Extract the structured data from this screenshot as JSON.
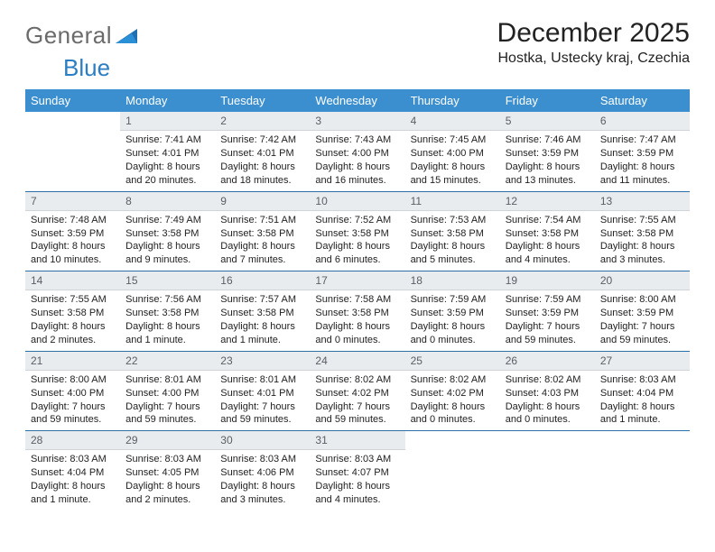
{
  "brand": {
    "text1": "General",
    "text2": "Blue"
  },
  "header": {
    "month_title": "December 2025",
    "location": "Hostka, Ustecky kraj, Czechia"
  },
  "colors": {
    "header_bg": "#3b8fcf",
    "header_text": "#ffffff",
    "daynum_bg": "#e9ecef",
    "daynum_text": "#5a5f66",
    "row_sep": "#2f6fa8",
    "body_text": "#222222",
    "logo_gray": "#6b6b6b",
    "logo_blue": "#2b7ec2"
  },
  "weekdays": [
    "Sunday",
    "Monday",
    "Tuesday",
    "Wednesday",
    "Thursday",
    "Friday",
    "Saturday"
  ],
  "weeks": [
    [
      {
        "n": "",
        "sr": "",
        "ss": "",
        "dl": ""
      },
      {
        "n": "1",
        "sr": "Sunrise: 7:41 AM",
        "ss": "Sunset: 4:01 PM",
        "dl": "Daylight: 8 hours and 20 minutes."
      },
      {
        "n": "2",
        "sr": "Sunrise: 7:42 AM",
        "ss": "Sunset: 4:01 PM",
        "dl": "Daylight: 8 hours and 18 minutes."
      },
      {
        "n": "3",
        "sr": "Sunrise: 7:43 AM",
        "ss": "Sunset: 4:00 PM",
        "dl": "Daylight: 8 hours and 16 minutes."
      },
      {
        "n": "4",
        "sr": "Sunrise: 7:45 AM",
        "ss": "Sunset: 4:00 PM",
        "dl": "Daylight: 8 hours and 15 minutes."
      },
      {
        "n": "5",
        "sr": "Sunrise: 7:46 AM",
        "ss": "Sunset: 3:59 PM",
        "dl": "Daylight: 8 hours and 13 minutes."
      },
      {
        "n": "6",
        "sr": "Sunrise: 7:47 AM",
        "ss": "Sunset: 3:59 PM",
        "dl": "Daylight: 8 hours and 11 minutes."
      }
    ],
    [
      {
        "n": "7",
        "sr": "Sunrise: 7:48 AM",
        "ss": "Sunset: 3:59 PM",
        "dl": "Daylight: 8 hours and 10 minutes."
      },
      {
        "n": "8",
        "sr": "Sunrise: 7:49 AM",
        "ss": "Sunset: 3:58 PM",
        "dl": "Daylight: 8 hours and 9 minutes."
      },
      {
        "n": "9",
        "sr": "Sunrise: 7:51 AM",
        "ss": "Sunset: 3:58 PM",
        "dl": "Daylight: 8 hours and 7 minutes."
      },
      {
        "n": "10",
        "sr": "Sunrise: 7:52 AM",
        "ss": "Sunset: 3:58 PM",
        "dl": "Daylight: 8 hours and 6 minutes."
      },
      {
        "n": "11",
        "sr": "Sunrise: 7:53 AM",
        "ss": "Sunset: 3:58 PM",
        "dl": "Daylight: 8 hours and 5 minutes."
      },
      {
        "n": "12",
        "sr": "Sunrise: 7:54 AM",
        "ss": "Sunset: 3:58 PM",
        "dl": "Daylight: 8 hours and 4 minutes."
      },
      {
        "n": "13",
        "sr": "Sunrise: 7:55 AM",
        "ss": "Sunset: 3:58 PM",
        "dl": "Daylight: 8 hours and 3 minutes."
      }
    ],
    [
      {
        "n": "14",
        "sr": "Sunrise: 7:55 AM",
        "ss": "Sunset: 3:58 PM",
        "dl": "Daylight: 8 hours and 2 minutes."
      },
      {
        "n": "15",
        "sr": "Sunrise: 7:56 AM",
        "ss": "Sunset: 3:58 PM",
        "dl": "Daylight: 8 hours and 1 minute."
      },
      {
        "n": "16",
        "sr": "Sunrise: 7:57 AM",
        "ss": "Sunset: 3:58 PM",
        "dl": "Daylight: 8 hours and 1 minute."
      },
      {
        "n": "17",
        "sr": "Sunrise: 7:58 AM",
        "ss": "Sunset: 3:58 PM",
        "dl": "Daylight: 8 hours and 0 minutes."
      },
      {
        "n": "18",
        "sr": "Sunrise: 7:59 AM",
        "ss": "Sunset: 3:59 PM",
        "dl": "Daylight: 8 hours and 0 minutes."
      },
      {
        "n": "19",
        "sr": "Sunrise: 7:59 AM",
        "ss": "Sunset: 3:59 PM",
        "dl": "Daylight: 7 hours and 59 minutes."
      },
      {
        "n": "20",
        "sr": "Sunrise: 8:00 AM",
        "ss": "Sunset: 3:59 PM",
        "dl": "Daylight: 7 hours and 59 minutes."
      }
    ],
    [
      {
        "n": "21",
        "sr": "Sunrise: 8:00 AM",
        "ss": "Sunset: 4:00 PM",
        "dl": "Daylight: 7 hours and 59 minutes."
      },
      {
        "n": "22",
        "sr": "Sunrise: 8:01 AM",
        "ss": "Sunset: 4:00 PM",
        "dl": "Daylight: 7 hours and 59 minutes."
      },
      {
        "n": "23",
        "sr": "Sunrise: 8:01 AM",
        "ss": "Sunset: 4:01 PM",
        "dl": "Daylight: 7 hours and 59 minutes."
      },
      {
        "n": "24",
        "sr": "Sunrise: 8:02 AM",
        "ss": "Sunset: 4:02 PM",
        "dl": "Daylight: 7 hours and 59 minutes."
      },
      {
        "n": "25",
        "sr": "Sunrise: 8:02 AM",
        "ss": "Sunset: 4:02 PM",
        "dl": "Daylight: 8 hours and 0 minutes."
      },
      {
        "n": "26",
        "sr": "Sunrise: 8:02 AM",
        "ss": "Sunset: 4:03 PM",
        "dl": "Daylight: 8 hours and 0 minutes."
      },
      {
        "n": "27",
        "sr": "Sunrise: 8:03 AM",
        "ss": "Sunset: 4:04 PM",
        "dl": "Daylight: 8 hours and 1 minute."
      }
    ],
    [
      {
        "n": "28",
        "sr": "Sunrise: 8:03 AM",
        "ss": "Sunset: 4:04 PM",
        "dl": "Daylight: 8 hours and 1 minute."
      },
      {
        "n": "29",
        "sr": "Sunrise: 8:03 AM",
        "ss": "Sunset: 4:05 PM",
        "dl": "Daylight: 8 hours and 2 minutes."
      },
      {
        "n": "30",
        "sr": "Sunrise: 8:03 AM",
        "ss": "Sunset: 4:06 PM",
        "dl": "Daylight: 8 hours and 3 minutes."
      },
      {
        "n": "31",
        "sr": "Sunrise: 8:03 AM",
        "ss": "Sunset: 4:07 PM",
        "dl": "Daylight: 8 hours and 4 minutes."
      },
      {
        "n": "",
        "sr": "",
        "ss": "",
        "dl": ""
      },
      {
        "n": "",
        "sr": "",
        "ss": "",
        "dl": ""
      },
      {
        "n": "",
        "sr": "",
        "ss": "",
        "dl": ""
      }
    ]
  ]
}
